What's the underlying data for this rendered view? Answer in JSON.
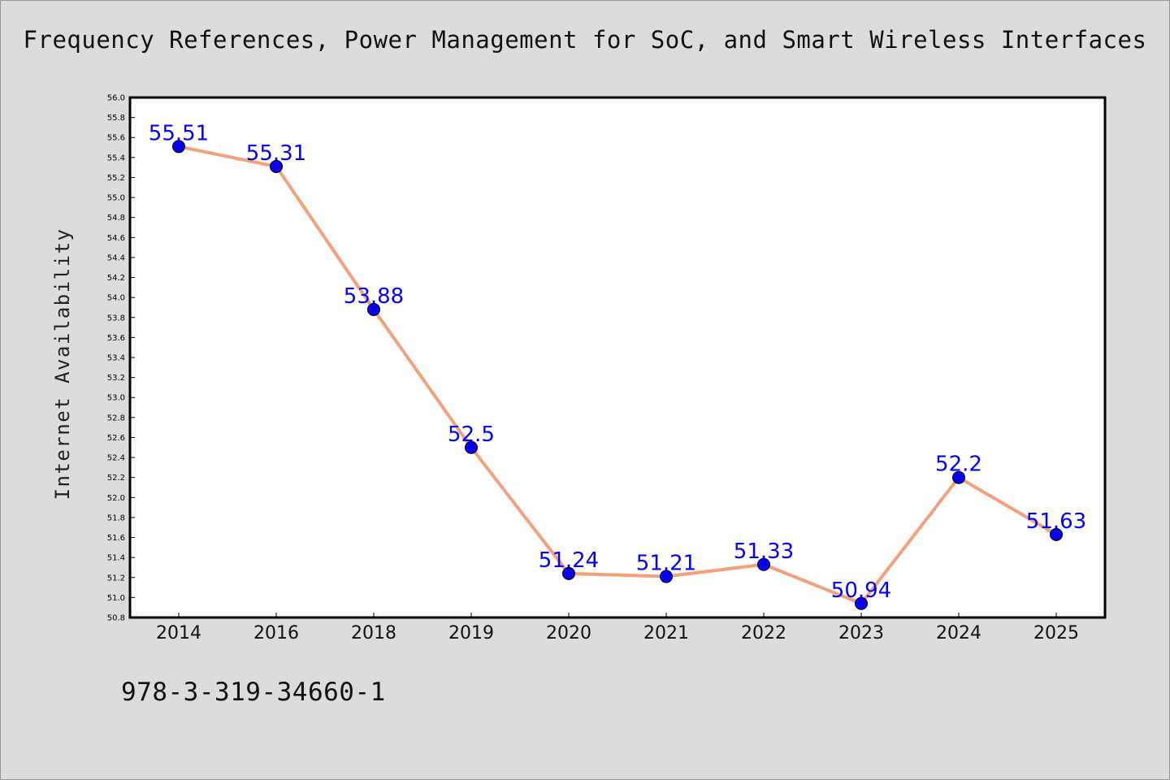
{
  "title": "Frequency References, Power Management for SoC, and Smart Wireless Interfaces",
  "footnote": "978-3-319-34660-1",
  "chart_data": {
    "type": "line",
    "title": "Frequency References, Power Management for SoC, and Smart Wireless Interfaces",
    "xlabel": "",
    "ylabel": "Internet Availability",
    "categories": [
      "2014",
      "2016",
      "2018",
      "2019",
      "2020",
      "2021",
      "2022",
      "2023",
      "2024",
      "2025"
    ],
    "series": [
      {
        "values": [
          55.51,
          55.31,
          53.88,
          52.5,
          51.24,
          51.21,
          51.33,
          50.94,
          52.2,
          51.63
        ],
        "labels": [
          "55.51",
          "55.31",
          "53.88",
          "52.5",
          "51.24",
          "51.21",
          "51.33",
          "50.94",
          "52.2",
          "51.63"
        ]
      }
    ],
    "ylim": [
      50.8,
      56.0
    ],
    "yticks": [
      "50.8",
      "51.0",
      "51.2",
      "51.4",
      "51.6",
      "51.8",
      "52.0",
      "52.2",
      "52.4",
      "52.6",
      "52.8",
      "53.0",
      "53.2",
      "53.4",
      "53.6",
      "53.8",
      "54.0",
      "54.2",
      "54.4",
      "54.6",
      "54.8",
      "55.0",
      "55.2",
      "55.4",
      "55.6",
      "55.8",
      "56.0"
    ],
    "grid": false,
    "legend": "none",
    "colors": {
      "line": "#f4a07c",
      "marker": "#0a00f0",
      "label": "#0000ff",
      "plot_bg": "#ffffff",
      "page_bg": "#dcdcdc"
    }
  }
}
